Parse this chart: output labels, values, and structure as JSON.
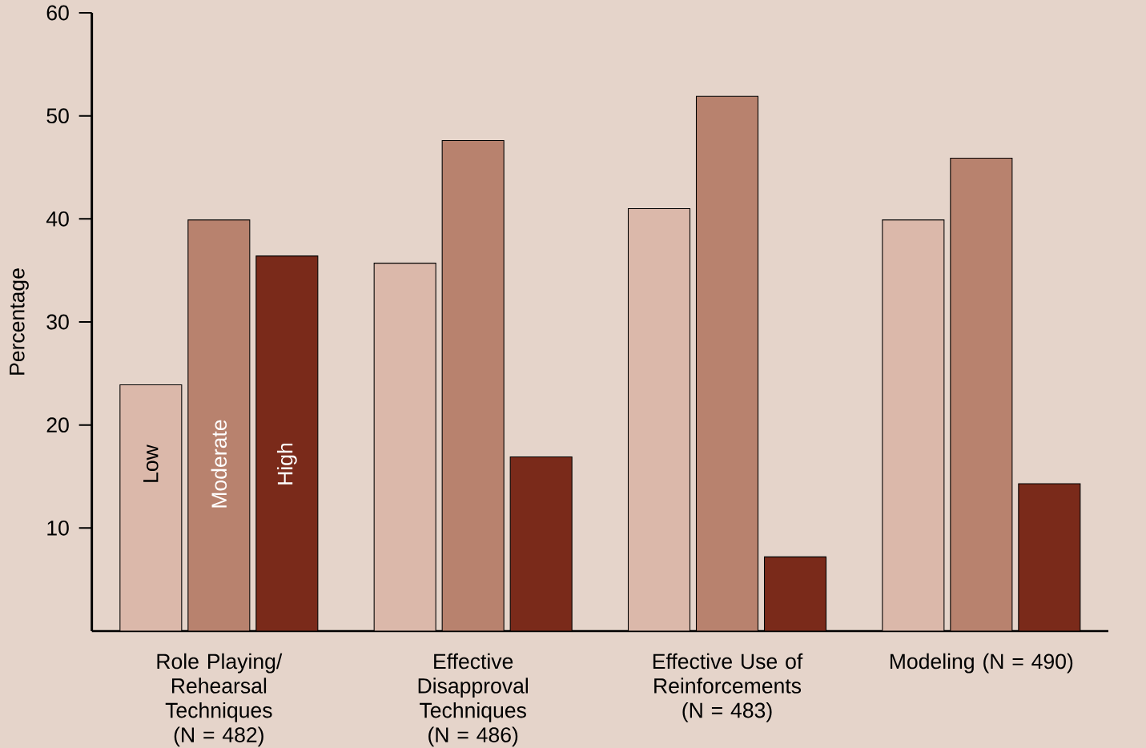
{
  "chart_data": {
    "type": "bar",
    "ylabel": "Percentage",
    "categories": [
      "Role Playing/ Rehearsal Techniques (N = 482)",
      "Effective Disapproval Techniques (N = 486)",
      "Effective Use of Reinforcements (N = 483)",
      "Modeling (N = 490)"
    ],
    "series": [
      {
        "name": "Low",
        "color": "#dbb8aa",
        "values": [
          23.9,
          35.7,
          41.0,
          39.9
        ]
      },
      {
        "name": "Moderate",
        "color": "#b8826e",
        "values": [
          39.9,
          47.6,
          51.9,
          45.9
        ]
      },
      {
        "name": "High",
        "color": "#7a2a1a",
        "values": [
          36.4,
          16.9,
          7.2,
          14.3
        ]
      }
    ],
    "ylim": [
      0,
      60
    ],
    "yticks": [
      10,
      20,
      30,
      40,
      50,
      60
    ],
    "grid": false,
    "legend": false
  }
}
